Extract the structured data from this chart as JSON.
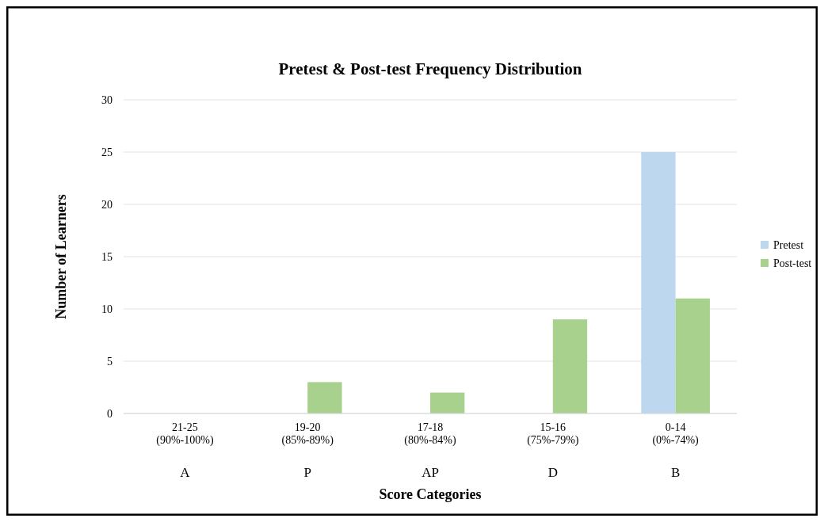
{
  "chart_data": {
    "type": "bar",
    "title": "Pretest & Post-test Frequency Distribution",
    "xlabel": "Score Categories",
    "ylabel": "Number of Learners",
    "categories": [
      "21-25\n(90%-100%)\nA",
      "19-20\n(85%-89%)\nP",
      "17-18\n(80%-84%)\nAP",
      "15-16\n(75%-79%)\nD",
      "0-14\n(0%-74%)\nB"
    ],
    "series": [
      {
        "name": "Pretest",
        "color": "#bdd7ee",
        "values": [
          0,
          0,
          0,
          0,
          25
        ]
      },
      {
        "name": "Post-test",
        "color": "#a9d18e",
        "values": [
          0,
          3,
          2,
          9,
          11
        ]
      }
    ],
    "ylim": [
      0,
      30
    ],
    "yticks": [
      0,
      5,
      10,
      15,
      20,
      25,
      30
    ],
    "grid": "y",
    "legend": "right"
  }
}
